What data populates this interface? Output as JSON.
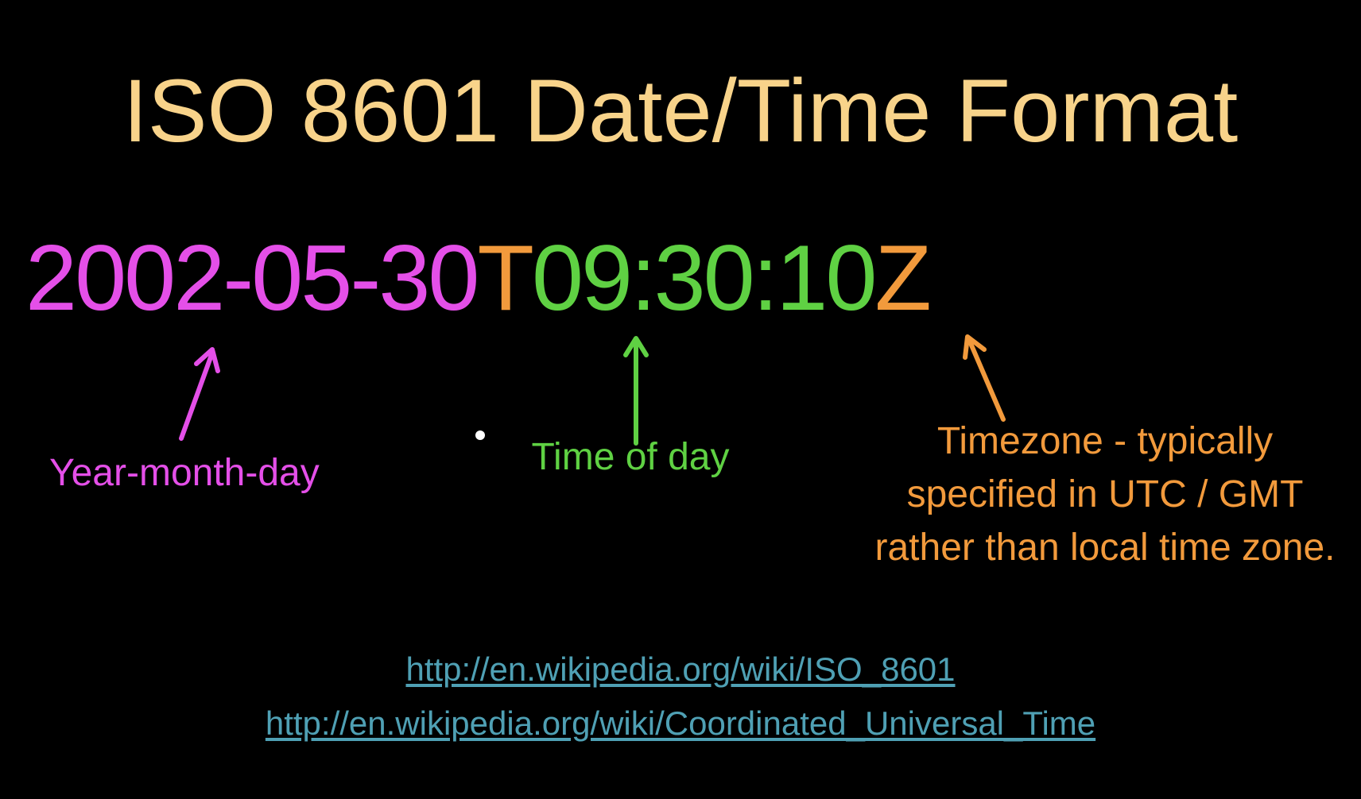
{
  "title": "ISO 8601 Date/Time Format",
  "timestamp": {
    "date": "2002-05-30",
    "separator": "T",
    "time": "09:30:10",
    "zone": "Z"
  },
  "labels": {
    "date": "Year-month-day",
    "time": "Time of day",
    "timezone": "Timezone - typically specified in UTC / GMT rather than local time zone."
  },
  "links": [
    "http://en.wikipedia.org/wiki/ISO_8601",
    "http://en.wikipedia.org/wiki/Coordinated_Universal_Time"
  ],
  "colors": {
    "background": "#000000",
    "title": "#f8d38a",
    "date": "#e44fe8",
    "time": "#5fd143",
    "zone": "#f29a3c",
    "link": "#4fa0b4"
  }
}
